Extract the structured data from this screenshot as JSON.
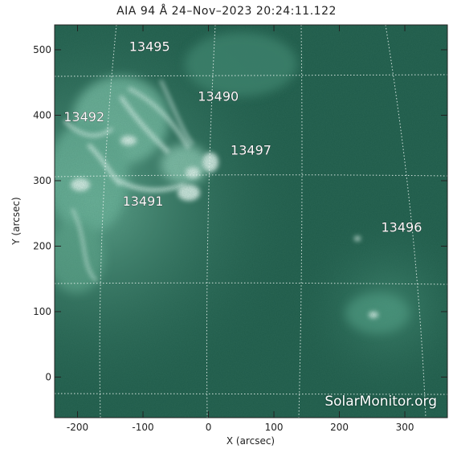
{
  "title": "AIA 94 Å 24–Nov–2023 20:24:11.122",
  "axes": {
    "xlabel": "X (arcsec)",
    "ylabel": "Y (arcsec)",
    "xlim": [
      -235,
      365
    ],
    "ylim": [
      -62,
      538
    ],
    "xticks": [
      -200,
      -100,
      0,
      100,
      200,
      300
    ],
    "yticks": [
      0,
      100,
      200,
      300,
      400,
      500
    ]
  },
  "active_regions": [
    {
      "id": "13495",
      "x": -90,
      "y": 498
    },
    {
      "id": "13490",
      "x": 15,
      "y": 422
    },
    {
      "id": "13492",
      "x": -190,
      "y": 391
    },
    {
      "id": "13497",
      "x": 65,
      "y": 340
    },
    {
      "id": "13491",
      "x": -100,
      "y": 262
    },
    {
      "id": "13496",
      "x": 295,
      "y": 222
    }
  ],
  "watermark": "SolarMonitor.org",
  "colors": {
    "background": "#1e5a48",
    "bright": "#cfeee2",
    "grid": "#e8f2ee"
  }
}
